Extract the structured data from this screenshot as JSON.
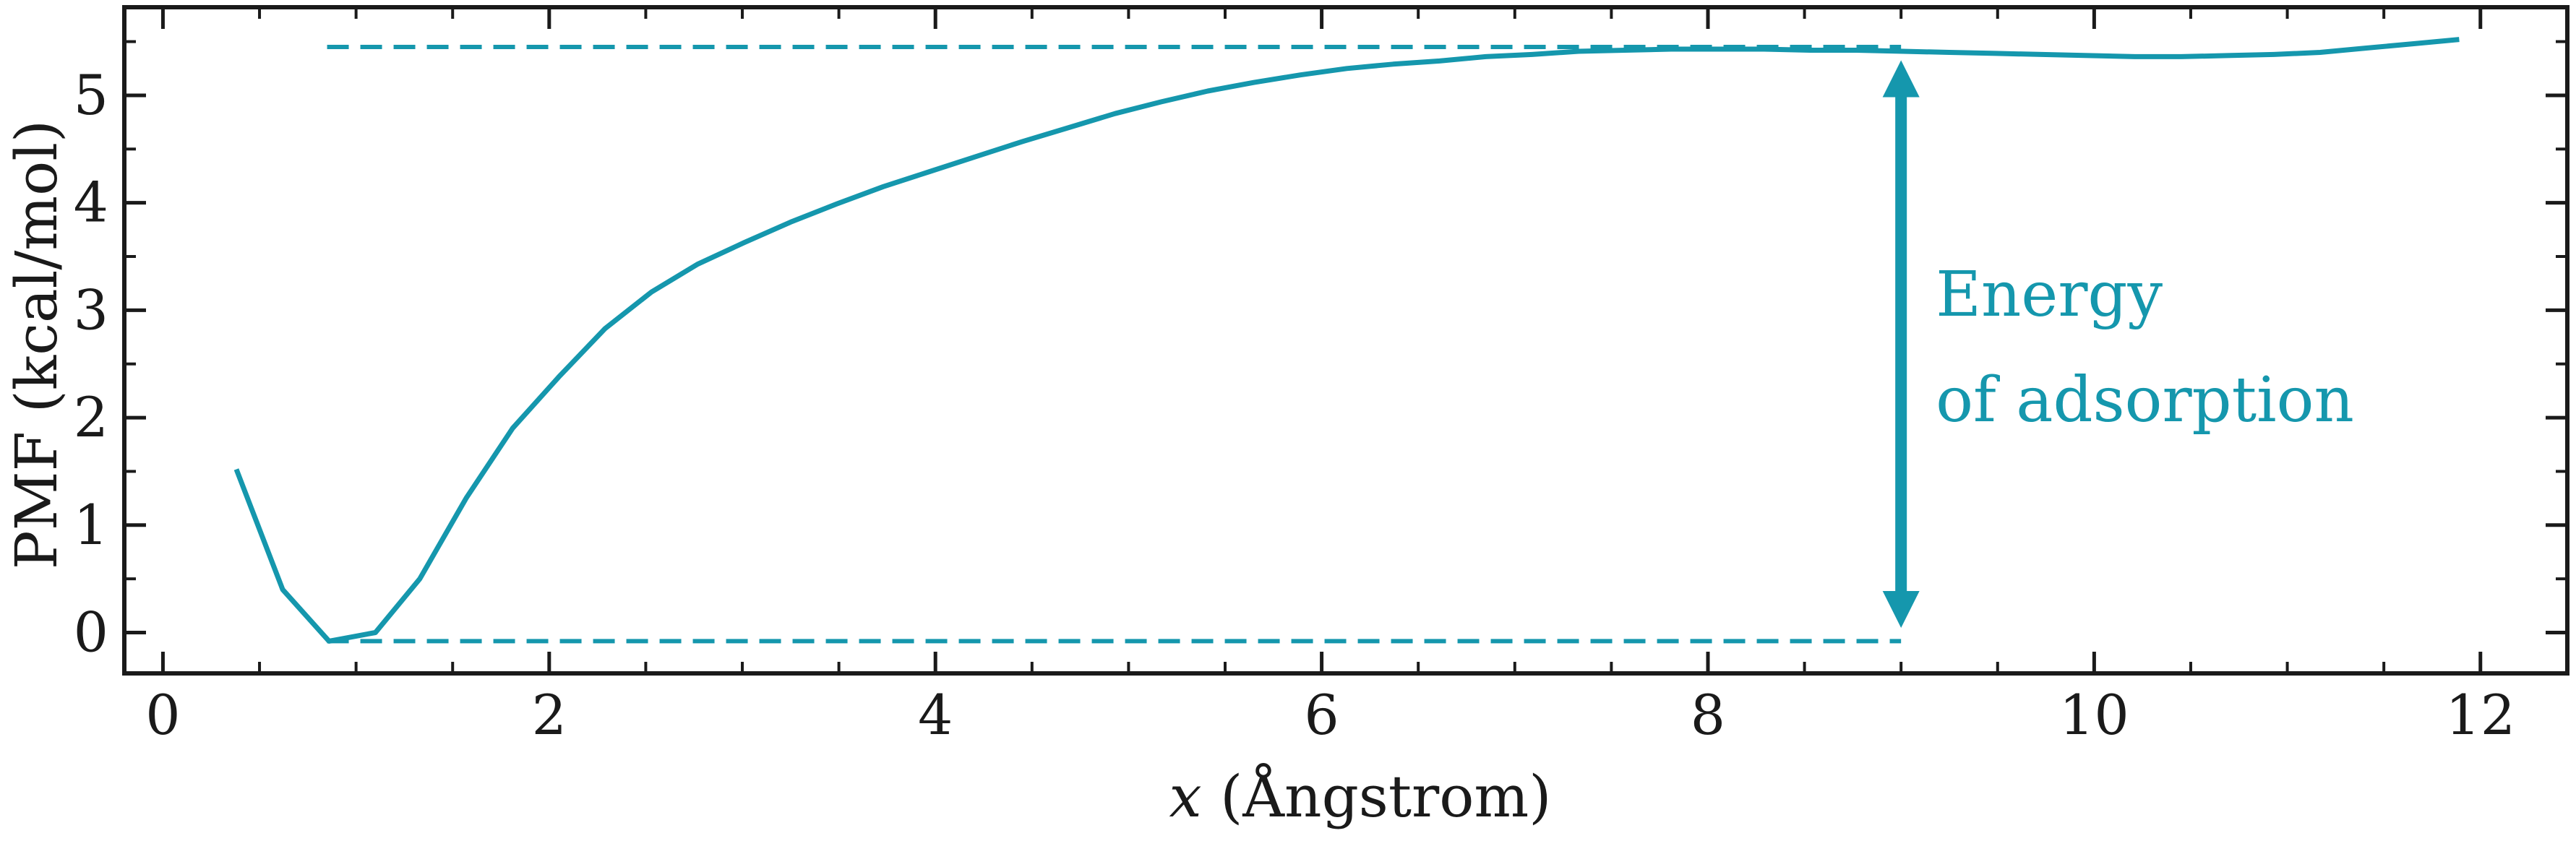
{
  "chart_data": {
    "type": "line",
    "title": "",
    "xlabel_var": "x",
    "xlabel_unit": " (Ångstrom)",
    "ylabel": "PMF (kcal/mol)",
    "xlim": [
      -0.2,
      12.45
    ],
    "ylim": [
      -0.38,
      5.82
    ],
    "x_ticks": [
      0,
      2,
      4,
      6,
      8,
      10,
      12
    ],
    "x_tick_labels": [
      "0",
      "2",
      "4",
      "6",
      "8",
      "10",
      "12"
    ],
    "x_minor_step": 0.5,
    "y_ticks": [
      0,
      1,
      2,
      3,
      4,
      5
    ],
    "y_tick_labels": [
      "0",
      "1",
      "2",
      "3",
      "4",
      "5"
    ],
    "y_minor_step": 0.5,
    "grid": false,
    "line_color": "#1597ad",
    "series": [
      {
        "x": [
          0.38,
          0.62,
          0.86,
          1.1,
          1.33,
          1.57,
          1.81,
          2.05,
          2.29,
          2.53,
          2.77,
          3.01,
          3.25,
          3.49,
          3.73,
          3.97,
          4.21,
          4.45,
          4.69,
          4.93,
          5.17,
          5.41,
          5.65,
          5.89,
          6.13,
          6.37,
          6.61,
          6.85,
          7.09,
          7.33,
          7.57,
          7.81,
          8.05,
          8.29,
          8.53,
          8.77,
          9.01,
          9.25,
          9.49,
          9.73,
          9.97,
          10.21,
          10.45,
          10.69,
          10.93,
          11.17,
          11.41,
          11.65,
          11.89
        ],
        "y": [
          1.52,
          0.4,
          -0.08,
          0.0,
          0.5,
          1.25,
          1.9,
          2.38,
          2.83,
          3.17,
          3.43,
          3.63,
          3.82,
          3.99,
          4.15,
          4.29,
          4.43,
          4.57,
          4.7,
          4.83,
          4.94,
          5.04,
          5.12,
          5.19,
          5.25,
          5.29,
          5.32,
          5.36,
          5.38,
          5.41,
          5.42,
          5.43,
          5.43,
          5.43,
          5.42,
          5.42,
          5.41,
          5.4,
          5.39,
          5.38,
          5.37,
          5.36,
          5.36,
          5.37,
          5.38,
          5.4,
          5.44,
          5.48,
          5.52
        ]
      }
    ],
    "ref_lines": [
      {
        "y": 5.45,
        "x_start": 0.85,
        "x_end": 9.0,
        "style": "dashed"
      },
      {
        "y": -0.08,
        "x_start": 0.85,
        "x_end": 9.0,
        "style": "dashed"
      }
    ],
    "arrow": {
      "x": 9.0,
      "y_from": -0.08,
      "y_to": 5.45,
      "style": "double-headed"
    },
    "annotation_lines": [
      "Energy",
      "of adsorption"
    ],
    "annotation_pos": {
      "x": 9.18,
      "y": 2.95
    }
  }
}
